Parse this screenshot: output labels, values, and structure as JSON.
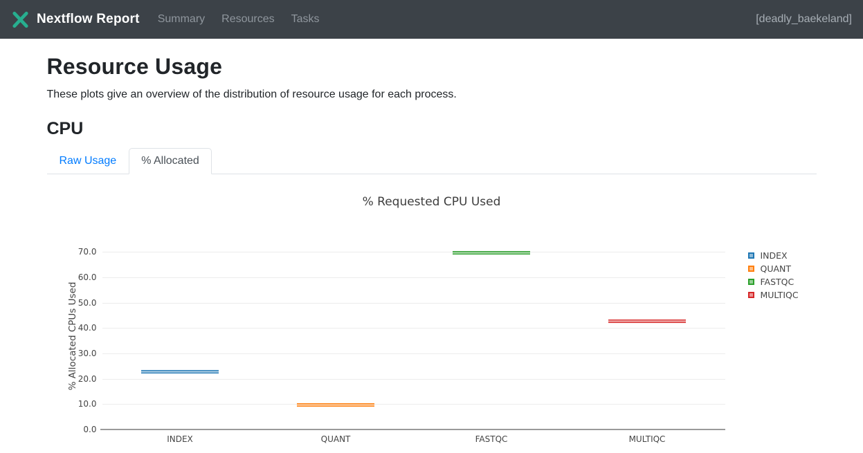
{
  "navbar": {
    "brand": "Nextflow Report",
    "items": [
      {
        "label": "Summary"
      },
      {
        "label": "Resources"
      },
      {
        "label": "Tasks"
      }
    ],
    "session": "[deadly_baekeland]",
    "logo_color": "#27ae8f",
    "bg_color": "#3c4248"
  },
  "page": {
    "title": "Resource Usage",
    "description": "These plots give an overview of the distribution of resource usage for each process.",
    "section_title": "CPU"
  },
  "tabs": [
    {
      "label": "Raw Usage",
      "active": false
    },
    {
      "label": "% Allocated",
      "active": true
    }
  ],
  "chart_data": {
    "type": "box",
    "title": "% Requested CPU Used",
    "xlabel": "",
    "ylabel": "% Allocated CPUs Used",
    "categories": [
      "INDEX",
      "QUANT",
      "FASTQC",
      "MULTIQC"
    ],
    "series": [
      {
        "name": "INDEX",
        "color": "#1f77b4",
        "value": 22.8
      },
      {
        "name": "QUANT",
        "color": "#ff7f0e",
        "value": 9.8
      },
      {
        "name": "FASTQC",
        "color": "#2ca02c",
        "value": 69.8
      },
      {
        "name": "MULTIQC",
        "color": "#d62728",
        "value": 42.7
      }
    ],
    "yticks": [
      0,
      10,
      20,
      30,
      40,
      50,
      60,
      70
    ],
    "ylim": [
      0,
      75
    ],
    "grid": true,
    "legend_position": "right"
  }
}
